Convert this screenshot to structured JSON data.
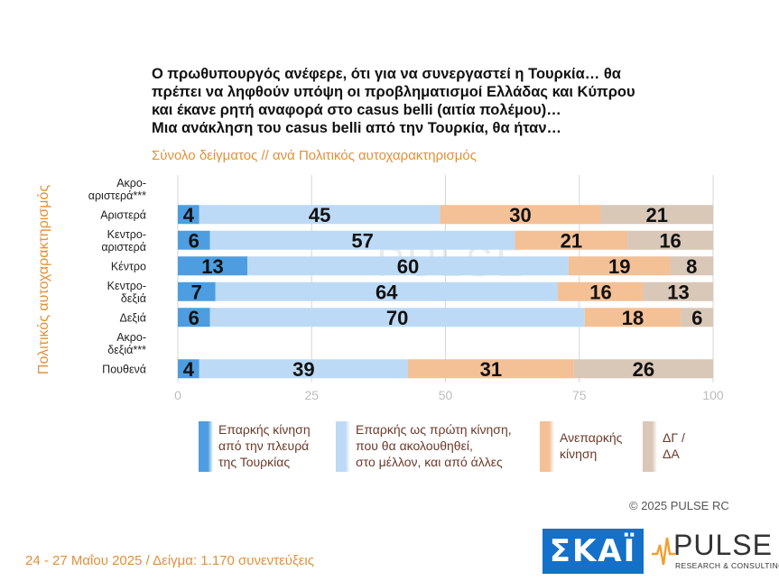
{
  "header": {
    "title_lines": [
      "Ο πρωθυπουργός ανέφερε, ότι για να συνεργαστεί η Τουρκία… θα",
      "πρέπει να ληφθούν υπόψη οι προβληματισμοί Ελλάδας και Κύπρου",
      "και έκανε ρητή αναφορά στο casus belli (αιτία πολέμου)…",
      "Μια ανάκληση του casus belli από την Τουρκία, θα ήταν…"
    ],
    "subtitle": "Σύνολο δείγματος // ανά Πολιτικός αυτοχαρακτηρισμός"
  },
  "chart_data": {
    "type": "bar",
    "orientation": "horizontal",
    "stacked": true,
    "ylabel": "Πολιτικός αυτοχαρακτηρισμός",
    "xlim": [
      0,
      100
    ],
    "xticks": [
      0,
      25,
      50,
      75,
      100
    ],
    "categories": [
      [
        "Ακρο-",
        "αριστερά***"
      ],
      [
        "Αριστερά"
      ],
      [
        "Κεντρο-",
        "αριστερά"
      ],
      [
        "Κέντρο"
      ],
      [
        "Κεντρο-",
        "δεξιά"
      ],
      [
        "Δεξιά"
      ],
      [
        "Ακρο-",
        "δεξιά***"
      ],
      [
        "Πουθενά"
      ]
    ],
    "series": [
      {
        "name": "Επαρκής κίνηση από την πλευρά της Τουρκίας",
        "color": "#4d9de0",
        "values": [
          null,
          4,
          6,
          13,
          7,
          6,
          null,
          4
        ]
      },
      {
        "name": "Επαρκής ως πρώτη κίνηση, που θα ακολουθηθεί, στο μέλλον, και από άλλες",
        "color": "#bcdaf5",
        "values": [
          null,
          45,
          57,
          60,
          64,
          70,
          null,
          39
        ]
      },
      {
        "name": "Ανεπαρκής κίνηση",
        "color": "#f4c095",
        "values": [
          null,
          30,
          21,
          19,
          16,
          18,
          null,
          31
        ]
      },
      {
        "name": "ΔΓ / ΔΑ",
        "color": "#d9c7b8",
        "values": [
          null,
          21,
          16,
          8,
          13,
          6,
          null,
          26
        ]
      }
    ],
    "grid": true,
    "legend_position": "bottom"
  },
  "legend": [
    {
      "lines": [
        "Επαρκής κίνηση",
        "από την πλευρά",
        "της Τουρκίας"
      ],
      "color": "#4d9de0"
    },
    {
      "lines": [
        "Επαρκής ως πρώτη κίνηση,",
        "που θα ακολουθηθεί,",
        "στο μέλλον, και από άλλες"
      ],
      "color": "#bcdaf5"
    },
    {
      "lines": [
        "Ανεπαρκής",
        "κίνηση"
      ],
      "color": "#f4c095"
    },
    {
      "lines": [
        "ΔΓ /",
        "ΔΑ"
      ],
      "color": "#d9c7b8"
    }
  ],
  "watermark": {
    "word": "PULSE",
    "sub": "RESEARCH & CONSULTING"
  },
  "footer": {
    "copyright": "© 2025 PULSE RC",
    "fieldwork": "24 - 27 Μαΐου 2025 / Δείγμα: 1.170 συνεντεύξεις"
  },
  "logos": {
    "skai": "ΣΚΑΪ",
    "pulse_word": "PULSE",
    "pulse_sub": "RESEARCH & CONSULTING"
  }
}
